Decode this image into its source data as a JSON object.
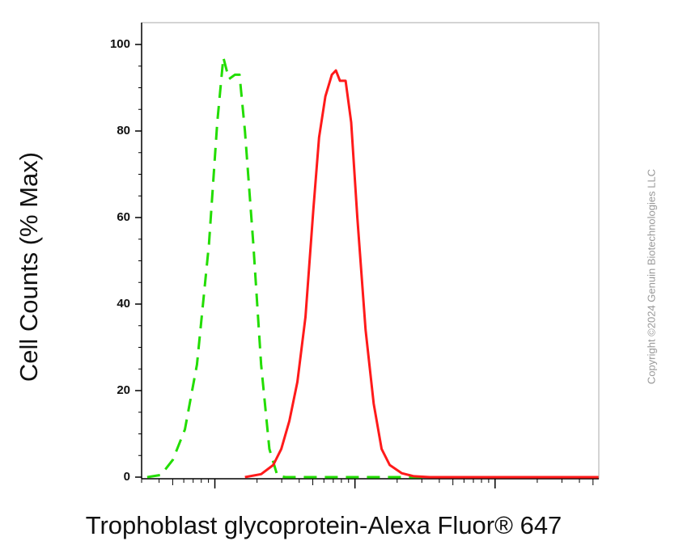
{
  "chart_data": {
    "type": "line",
    "x_label": "Trophoblast glycoprotein-Alexa Fluor® 647",
    "y_label": "Cell Counts (% Max)",
    "watermark": "Copyright ©2024 Genuin Biotechnologies LLC",
    "x_log_scale": true,
    "xlim": [
      3,
      5500
    ],
    "xticks": [
      10,
      100,
      1000
    ],
    "ylim": [
      0,
      100
    ],
    "yticks": [
      0,
      20,
      40,
      60,
      80,
      100
    ],
    "series": [
      {
        "color": "#22dd00",
        "line_style": "dashed",
        "x": [
          3.29,
          4.12,
          5.01,
          6.11,
          7.45,
          9.08,
          10.4,
          11.5,
          12.6,
          13.9,
          15.0,
          16.4,
          18.8,
          21.4,
          24.5,
          27.9,
          31.8,
          119,
          863,
          5470
        ],
        "values": [
          0,
          0.5,
          4,
          11,
          26,
          54,
          82,
          97,
          92,
          93,
          93,
          80,
          54,
          26,
          6.5,
          0.4,
          0,
          0,
          0,
          0
        ]
      },
      {
        "color": "#ff1a1a",
        "line_style": "solid",
        "x": [
          16.4,
          21.4,
          26.1,
          29.8,
          34.0,
          38.8,
          44.3,
          50.5,
          55.4,
          61.5,
          68.4,
          73.1,
          78.1,
          85.7,
          94.0,
          104,
          119,
          136,
          155,
          177,
          216,
          263,
          342,
          5470
        ],
        "values": [
          0,
          0.7,
          2.8,
          6.5,
          13,
          22,
          37,
          62,
          78.5,
          88,
          93,
          94,
          91.6,
          91.6,
          82,
          60,
          34,
          17,
          6.5,
          2.8,
          0.9,
          0.2,
          0,
          0
        ]
      }
    ]
  }
}
